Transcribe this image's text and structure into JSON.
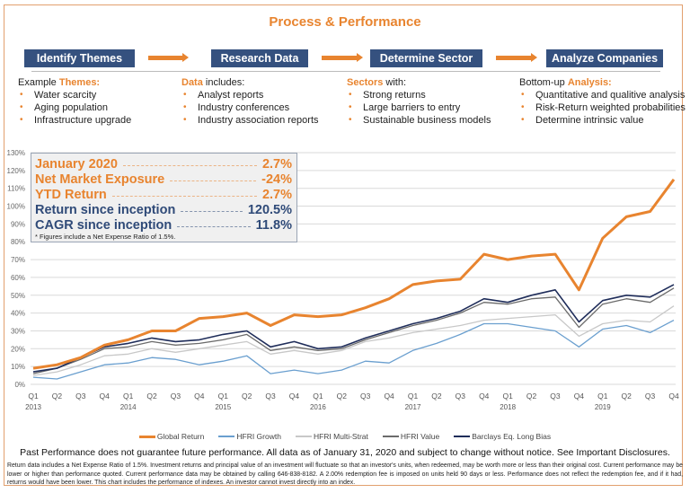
{
  "title": "Process & Performance",
  "process_steps": [
    "Identify Themes",
    "Research Data",
    "Determine Sector",
    "Analyze Companies"
  ],
  "columns": [
    {
      "head_pre": "Example ",
      "head_hl": "Themes:",
      "head_post": "",
      "items": [
        "Water scarcity",
        "Aging population",
        "Infrastructure upgrade"
      ]
    },
    {
      "head_pre": "",
      "head_hl": "Data",
      "head_post": " includes:",
      "items": [
        "Analyst reports",
        "Industry conferences",
        "Industry association reports"
      ]
    },
    {
      "head_pre": "",
      "head_hl": "Sectors",
      "head_post": " with:",
      "items": [
        "Strong returns",
        "Large barriers to entry",
        "Sustainable business models"
      ]
    },
    {
      "head_pre": "Bottom-up ",
      "head_hl": "Analysis:",
      "head_post": "",
      "items": [
        "Quantitative and qualitive analysis",
        "Risk-Return weighted probabilities",
        "Determine intrinsic value"
      ]
    }
  ],
  "stats": [
    {
      "label": "January 2020",
      "value": "2.7%",
      "tone": "orange"
    },
    {
      "label": "Net Market Exposure",
      "value": "-24%",
      "tone": "orange"
    },
    {
      "label": "YTD Return",
      "value": "2.7%",
      "tone": "orange"
    },
    {
      "label": "Return since inception",
      "value": "120.5%",
      "tone": "navy"
    },
    {
      "label": "CAGR since inception",
      "value": "11.8%",
      "tone": "navy"
    }
  ],
  "stats_note": "* Figures include a Net Expense Ratio of 1.5%.",
  "colors": {
    "accent": "#e8842f",
    "navy": "#35517f"
  },
  "chart_data": {
    "type": "line",
    "title": "",
    "xlabel": "",
    "ylabel": "",
    "ylim": [
      0,
      130
    ],
    "yticks": [
      0,
      10,
      20,
      30,
      40,
      50,
      60,
      70,
      80,
      90,
      100,
      110,
      120,
      130
    ],
    "ytick_suffix": "%",
    "grid": true,
    "legend_position": "bottom",
    "x": [
      "Q1 2013",
      "Q2 2013",
      "Q3 2013",
      "Q4 2013",
      "Q1 2014",
      "Q2 2014",
      "Q3 2014",
      "Q4 2014",
      "Q1 2015",
      "Q2 2015",
      "Q3 2015",
      "Q4 2015",
      "Q1 2016",
      "Q2 2016",
      "Q3 2016",
      "Q4 2016",
      "Q1 2017",
      "Q2 2017",
      "Q3 2017",
      "Q4 2017",
      "Q1 2018",
      "Q2 2018",
      "Q3 2018",
      "Q4 2018",
      "Q1 2019",
      "Q2 2019",
      "Q3 2019",
      "Q4 2019"
    ],
    "x_tick_quarters": [
      "Q1",
      "Q2",
      "Q3",
      "Q4",
      "Q1",
      "Q2",
      "Q3",
      "Q4",
      "Q1",
      "Q2",
      "Q3",
      "Q4",
      "Q1",
      "Q2",
      "Q3",
      "Q4",
      "Q1",
      "Q2",
      "Q3",
      "Q4",
      "Q1",
      "Q2",
      "Q3",
      "Q4",
      "Q1",
      "Q2",
      "Q3",
      "Q4"
    ],
    "x_tick_years": [
      "2013",
      "",
      "",
      "",
      "2014",
      "",
      "",
      "",
      "2015",
      "",
      "",
      "",
      "2016",
      "",
      "",
      "",
      "2017",
      "",
      "",
      "",
      "2018",
      "",
      "",
      "",
      "2019",
      "",
      "",
      ""
    ],
    "series": [
      {
        "name": "HFRI Growth",
        "color": "#6a9fcf",
        "values": [
          4,
          3,
          7,
          11,
          12,
          15,
          14,
          11,
          13,
          16,
          6,
          8,
          6,
          8,
          13,
          12,
          19,
          23,
          28,
          34,
          34,
          32,
          30,
          21,
          31,
          33,
          29,
          36
        ]
      },
      {
        "name": "HFRI Multi-Strat",
        "color": "#c8c8c8",
        "values": [
          5,
          7,
          11,
          16,
          17,
          20,
          18,
          20,
          22,
          24,
          17,
          19,
          17,
          19,
          24,
          26,
          29,
          31,
          33,
          36,
          37,
          38,
          39,
          27,
          34,
          36,
          35,
          44
        ]
      },
      {
        "name": "HFRI Value",
        "color": "#6b6b6b",
        "values": [
          6,
          9,
          14,
          20,
          21,
          24,
          22,
          23,
          25,
          28,
          19,
          21,
          19,
          20,
          25,
          29,
          33,
          36,
          40,
          46,
          45,
          48,
          49,
          32,
          45,
          48,
          46,
          54
        ]
      },
      {
        "name": "Barclays Eq. Long Bias",
        "color": "#1f2d5a",
        "values": [
          7,
          9,
          15,
          21,
          23,
          26,
          24,
          25,
          28,
          30,
          21,
          24,
          20,
          21,
          26,
          30,
          34,
          37,
          41,
          48,
          46,
          50,
          53,
          35,
          47,
          50,
          49,
          56
        ]
      },
      {
        "name": "Global Return",
        "color": "#e8842f",
        "values": [
          9,
          11,
          15,
          22,
          25,
          30,
          30,
          37,
          38,
          40,
          33,
          39,
          38,
          39,
          43,
          48,
          56,
          58,
          59,
          73,
          70,
          72,
          73,
          53,
          82,
          94,
          97,
          115
        ]
      }
    ],
    "legend_order": [
      "Global Return",
      "HFRI Growth",
      "HFRI Multi-Strat",
      "HFRI Value",
      "Barclays Eq. Long Bias"
    ]
  },
  "past_performance": "Past Performance does not guarantee future performance. All data as of January 31, 2020 and subject to change without notice. See Important Disclosures.",
  "disclosure": "Return data includes a Net Expense Ratio of 1.5%. Investment returns and principal value of an investment will fluctuate so that an investor's units, when redeemed, may be worth more or less than their original cost. Current performance may be lower or higher than performance quoted. Current performance data may be obtained by calling 646-838-8182. A 2.00% redemption fee is imposed on units held 90 days or less. Performance does not reflect the redemption fee, and if it had, returns would have been lower. This chart includes the performance of indexes. An investor cannot invest directly into an index."
}
